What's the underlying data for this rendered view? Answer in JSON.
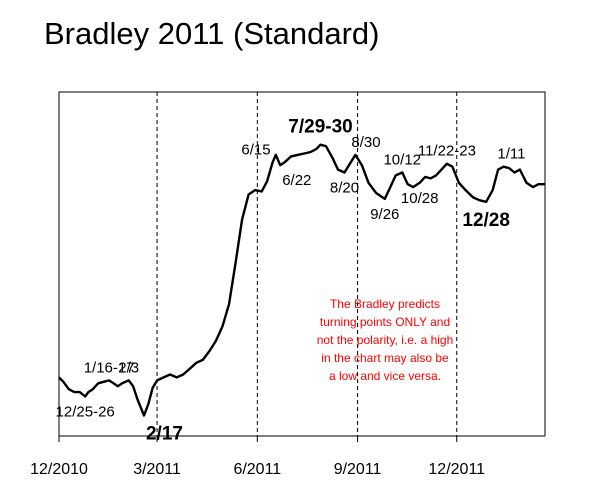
{
  "chart_data": {
    "type": "line",
    "title": "Bradley 2011 (Standard)",
    "xlabel": "",
    "ylabel": "",
    "grid": false,
    "x_ticks": [
      "12/2010",
      "3/2011",
      "6/2011",
      "9/2011",
      "12/2011"
    ],
    "x_range": [
      "2010-12-01",
      "2012-02-20"
    ],
    "series": [
      {
        "color": "#000000",
        "points": [
          [
            "2010-12-01",
            0.1
          ],
          [
            "2010-12-05",
            0.07
          ],
          [
            "2010-12-10",
            0.02
          ],
          [
            "2010-12-15",
            0.0
          ],
          [
            "2010-12-20",
            0.0
          ],
          [
            "2010-12-25",
            -0.03
          ],
          [
            "2010-12-28",
            0.0
          ],
          [
            "2011-01-01",
            0.02
          ],
          [
            "2011-01-06",
            0.06
          ],
          [
            "2011-01-11",
            0.07
          ],
          [
            "2011-01-16",
            0.08
          ],
          [
            "2011-01-20",
            0.06
          ],
          [
            "2011-01-24",
            0.04
          ],
          [
            "2011-01-28",
            0.06
          ],
          [
            "2011-02-03",
            0.08
          ],
          [
            "2011-02-07",
            0.04
          ],
          [
            "2011-02-11",
            -0.05
          ],
          [
            "2011-02-17",
            -0.16
          ],
          [
            "2011-02-21",
            -0.08
          ],
          [
            "2011-02-25",
            0.03
          ],
          [
            "2011-03-01",
            0.08
          ],
          [
            "2011-03-07",
            0.1
          ],
          [
            "2011-03-13",
            0.12
          ],
          [
            "2011-03-19",
            0.1
          ],
          [
            "2011-03-25",
            0.12
          ],
          [
            "2011-03-31",
            0.16
          ],
          [
            "2011-04-06",
            0.2
          ],
          [
            "2011-04-12",
            0.22
          ],
          [
            "2011-04-18",
            0.28
          ],
          [
            "2011-04-24",
            0.35
          ],
          [
            "2011-04-30",
            0.45
          ],
          [
            "2011-05-06",
            0.6
          ],
          [
            "2011-05-12",
            0.88
          ],
          [
            "2011-05-18",
            1.18
          ],
          [
            "2011-05-24",
            1.35
          ],
          [
            "2011-05-30",
            1.38
          ],
          [
            "2011-06-05",
            1.37
          ],
          [
            "2011-06-10",
            1.44
          ],
          [
            "2011-06-15",
            1.57
          ],
          [
            "2011-06-18",
            1.62
          ],
          [
            "2011-06-22",
            1.55
          ],
          [
            "2011-06-26",
            1.57
          ],
          [
            "2011-07-02",
            1.61
          ],
          [
            "2011-07-08",
            1.62
          ],
          [
            "2011-07-14",
            1.63
          ],
          [
            "2011-07-20",
            1.64
          ],
          [
            "2011-07-25",
            1.66
          ],
          [
            "2011-07-29",
            1.69
          ],
          [
            "2011-08-03",
            1.68
          ],
          [
            "2011-08-09",
            1.6
          ],
          [
            "2011-08-14",
            1.52
          ],
          [
            "2011-08-20",
            1.5
          ],
          [
            "2011-08-24",
            1.55
          ],
          [
            "2011-08-30",
            1.62
          ],
          [
            "2011-09-05",
            1.55
          ],
          [
            "2011-09-11",
            1.43
          ],
          [
            "2011-09-18",
            1.36
          ],
          [
            "2011-09-26",
            1.32
          ],
          [
            "2011-10-01",
            1.4
          ],
          [
            "2011-10-06",
            1.48
          ],
          [
            "2011-10-12",
            1.5
          ],
          [
            "2011-10-17",
            1.42
          ],
          [
            "2011-10-22",
            1.4
          ],
          [
            "2011-10-28",
            1.43
          ],
          [
            "2011-11-02",
            1.47
          ],
          [
            "2011-11-07",
            1.46
          ],
          [
            "2011-11-12",
            1.48
          ],
          [
            "2011-11-17",
            1.52
          ],
          [
            "2011-11-22",
            1.56
          ],
          [
            "2011-11-27",
            1.54
          ],
          [
            "2011-12-03",
            1.43
          ],
          [
            "2011-12-09",
            1.38
          ],
          [
            "2011-12-16",
            1.33
          ],
          [
            "2011-12-22",
            1.31
          ],
          [
            "2011-12-28",
            1.3
          ],
          [
            "2012-01-03",
            1.38
          ],
          [
            "2012-01-08",
            1.52
          ],
          [
            "2012-01-13",
            1.54
          ],
          [
            "2012-01-18",
            1.53
          ],
          [
            "2012-01-23",
            1.5
          ],
          [
            "2012-01-28",
            1.52
          ],
          [
            "2012-02-03",
            1.43
          ],
          [
            "2012-02-09",
            1.4
          ],
          [
            "2012-02-14",
            1.42
          ],
          [
            "2012-02-20",
            1.42
          ]
        ]
      }
    ],
    "ylim": [
      -0.3,
      2.05
    ],
    "vlines": [
      "2011-03-01",
      "2011-06-01",
      "2011-09-01",
      "2011-12-01"
    ],
    "annotations": [
      {
        "text": "1/16-17",
        "x": "2011-01-16",
        "y": 0.08,
        "place": "above",
        "bold": false
      },
      {
        "text": "2/3",
        "x": "2011-02-03",
        "y": 0.08,
        "place": "above",
        "bold": false
      },
      {
        "text": "12/25-26",
        "x": "2010-12-25",
        "y": -0.03,
        "place": "below",
        "bold": false
      },
      {
        "text": "2/17",
        "x": "2011-02-17",
        "y": -0.16,
        "place": "below-right",
        "bold": true
      },
      {
        "text": "6/15",
        "x": "2011-06-15",
        "y": 1.57,
        "place": "above-left",
        "bold": false
      },
      {
        "text": "7/29-30",
        "x": "2011-07-29",
        "y": 1.69,
        "place": "above",
        "bold": true
      },
      {
        "text": "6/22",
        "x": "2011-06-22",
        "y": 1.55,
        "place": "below-right",
        "bold": false
      },
      {
        "text": "8/20",
        "x": "2011-08-20",
        "y": 1.5,
        "place": "below",
        "bold": false
      },
      {
        "text": "8/30",
        "x": "2011-08-30",
        "y": 1.62,
        "place": "above-right",
        "bold": false
      },
      {
        "text": "10/12",
        "x": "2011-10-12",
        "y": 1.5,
        "place": "above",
        "bold": false
      },
      {
        "text": "9/26",
        "x": "2011-09-26",
        "y": 1.32,
        "place": "below",
        "bold": false
      },
      {
        "text": "10/28",
        "x": "2011-10-28",
        "y": 1.43,
        "place": "below",
        "bold": false
      },
      {
        "text": "11/22-23",
        "x": "2011-11-22",
        "y": 1.56,
        "place": "above",
        "bold": false
      },
      {
        "text": "1/11",
        "x": "2012-01-11",
        "y": 1.54,
        "place": "above-right",
        "bold": false
      },
      {
        "text": "12/28",
        "x": "2011-12-28",
        "y": 1.3,
        "place": "below",
        "bold": true
      }
    ],
    "note": {
      "color": "#ff0000",
      "lines": [
        "The Bradley predicts",
        "turning points ONLY and",
        "not the polarity, i.e. a high",
        "in the chart may also be",
        "a low and vice versa."
      ]
    }
  }
}
